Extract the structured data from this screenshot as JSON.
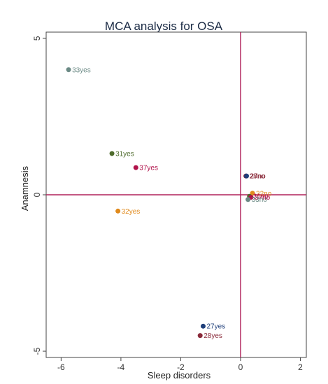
{
  "chart_data": {
    "type": "scatter",
    "title": "MCA analysis for OSA",
    "xlabel": "Sleep disorders",
    "ylabel": "Anamnesis",
    "xlim": [
      -6.5,
      2.2
    ],
    "ylim": [
      -5.2,
      5.2
    ],
    "xticks": [
      -6,
      -4,
      -2,
      0,
      2
    ],
    "yticks": [
      -5,
      0,
      5
    ],
    "reference_lines": {
      "x": 0,
      "y": 0,
      "color": "#b0205a"
    },
    "grid": false,
    "points": [
      {
        "label": "33yes",
        "x": -5.75,
        "y": 4.0,
        "color": "#6b8a85",
        "label_color": "#6b8a85"
      },
      {
        "label": "31yes",
        "x": -4.3,
        "y": 1.32,
        "color": "#4e6b2c",
        "label_color": "#4e6b2c"
      },
      {
        "label": "37yes",
        "x": -3.5,
        "y": 0.87,
        "color": "#b0124a",
        "label_color": "#b0124a"
      },
      {
        "label": "32yes",
        "x": -4.1,
        "y": -0.52,
        "color": "#e08a1c",
        "label_color": "#e08a1c"
      },
      {
        "label": "27yes",
        "x": -1.25,
        "y": -4.2,
        "color": "#1f3f7a",
        "label_color": "#1f3f7a"
      },
      {
        "label": "28yes",
        "x": -1.35,
        "y": -4.5,
        "color": "#8a2a3a",
        "label_color": "#8a2a3a"
      },
      {
        "label": "28no",
        "x": 0.18,
        "y": 0.6,
        "color": "#8a2a3a",
        "label_color": "#8a2a3a"
      },
      {
        "label": "27no",
        "x": 0.2,
        "y": 0.6,
        "color": "#1f3f7a",
        "label_color": "#8a2a3a"
      },
      {
        "label": "32no",
        "x": 0.4,
        "y": 0.05,
        "color": "#e08a1c",
        "label_color": "#e08a1c"
      },
      {
        "label": "31no",
        "x": 0.3,
        "y": -0.05,
        "color": "#4e6b2c",
        "label_color": "#b0124a"
      },
      {
        "label": "37no",
        "x": 0.35,
        "y": -0.08,
        "color": "#b0124a",
        "label_color": "#b0124a"
      },
      {
        "label": "33no",
        "x": 0.25,
        "y": -0.15,
        "color": "#6b8a85",
        "label_color": "#6b8a85"
      }
    ]
  }
}
